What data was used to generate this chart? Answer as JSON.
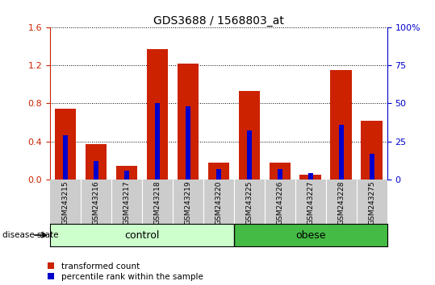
{
  "title": "GDS3688 / 1568803_at",
  "categories": [
    "GSM243215",
    "GSM243216",
    "GSM243217",
    "GSM243218",
    "GSM243219",
    "GSM243220",
    "GSM243225",
    "GSM243226",
    "GSM243227",
    "GSM243228",
    "GSM243275"
  ],
  "transformed_count": [
    0.74,
    0.37,
    0.14,
    1.37,
    1.22,
    0.18,
    0.93,
    0.18,
    0.05,
    1.15,
    0.62
  ],
  "percentile_rank_pct": [
    29,
    12,
    6,
    50,
    48,
    7,
    32,
    7,
    4,
    36,
    17
  ],
  "left_ylim": [
    0,
    1.6
  ],
  "right_ylim": [
    0,
    100
  ],
  "left_yticks": [
    0,
    0.4,
    0.8,
    1.2,
    1.6
  ],
  "right_yticks": [
    0,
    25,
    50,
    75,
    100
  ],
  "bar_color_red": "#CC2200",
  "bar_color_blue": "#0000CC",
  "n_control": 6,
  "n_obese": 5,
  "control_label": "control",
  "obese_label": "obese",
  "control_color": "#CCFFCC",
  "obese_color": "#44BB44",
  "disease_state_label": "disease state",
  "legend_red_label": "transformed count",
  "legend_blue_label": "percentile rank within the sample",
  "tick_label_area_color": "#CCCCCC",
  "background_color": "#FFFFFF"
}
